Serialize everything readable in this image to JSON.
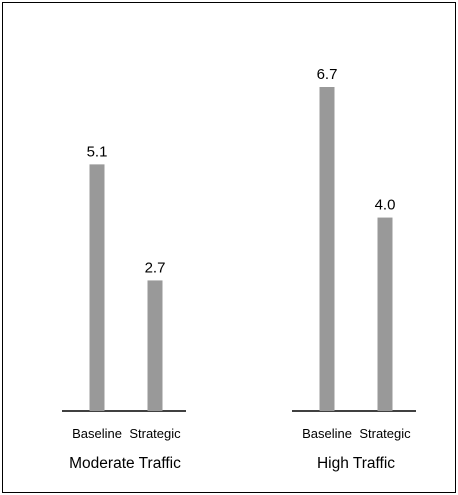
{
  "chart_data": {
    "type": "bar",
    "title": "",
    "xlabel": "",
    "ylabel": "",
    "groups": [
      {
        "name": "Moderate Traffic",
        "categories": [
          "Baseline",
          "Strategic"
        ],
        "values": [
          5.1,
          2.7
        ],
        "value_labels": [
          "5.1",
          "2.7"
        ]
      },
      {
        "name": "High Traffic",
        "categories": [
          "Baseline",
          "Strategic"
        ],
        "values": [
          6.7,
          4.0
        ],
        "value_labels": [
          "6.7",
          "4.0"
        ]
      }
    ],
    "ylim": [
      0,
      6.7
    ],
    "grid": false,
    "bar_color": "#999999",
    "axis_color": "#000000"
  }
}
